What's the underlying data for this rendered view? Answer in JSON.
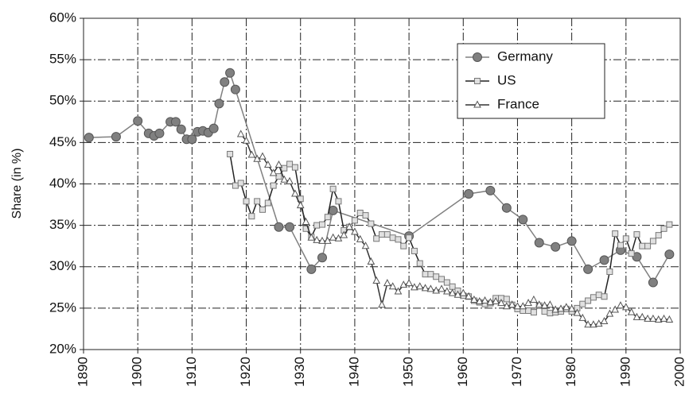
{
  "chart_data": {
    "type": "line",
    "y_label": "Share (in %)",
    "grid": true,
    "legend": "upper right",
    "xlim": [
      1890,
      2000
    ],
    "xticks": [
      1890,
      1900,
      1910,
      1920,
      1930,
      1940,
      1950,
      1960,
      1970,
      1980,
      1990,
      2000
    ],
    "ylim": [
      20,
      60
    ],
    "yticks": [
      {
        "value": 20,
        "label": "20%"
      },
      {
        "value": 25,
        "label": "25%"
      },
      {
        "value": 30,
        "label": "30%"
      },
      {
        "value": 35,
        "label": "35%"
      },
      {
        "value": 40,
        "label": "40%"
      },
      {
        "value": 45,
        "label": "45%"
      },
      {
        "value": 50,
        "label": "50%"
      },
      {
        "value": 55,
        "label": "55%"
      },
      {
        "value": 60,
        "label": "60%"
      }
    ],
    "series": [
      {
        "name": "Germany",
        "color": "#808080",
        "marker": "circle",
        "x": [
          1891,
          1896,
          1900,
          1902,
          1903,
          1904,
          1906,
          1907,
          1908,
          1909,
          1910,
          1911,
          1912,
          1913,
          1914,
          1915,
          1916,
          1917,
          1918,
          1926,
          1928,
          1932,
          1934,
          1936,
          1950,
          1961,
          1965,
          1968,
          1971,
          1974,
          1977,
          1980,
          1983,
          1986,
          1989,
          1992,
          1995,
          1998
        ],
        "values": [
          45.6,
          45.7,
          47.6,
          46.1,
          45.8,
          46.1,
          47.5,
          47.5,
          46.6,
          45.4,
          45.4,
          46.3,
          46.4,
          46.2,
          46.7,
          49.7,
          52.3,
          53.4,
          51.4,
          34.8,
          34.8,
          29.7,
          31.1,
          36.8,
          33.7,
          38.8,
          39.2,
          37.1,
          35.7,
          32.9,
          32.4,
          33.1,
          29.7,
          30.8,
          32.0,
          31.2,
          28.1,
          31.5
        ]
      },
      {
        "name": "US",
        "color": "#222222",
        "marker": "square",
        "x": [
          1917,
          1918,
          1919,
          1920,
          1921,
          1922,
          1923,
          1924,
          1925,
          1926,
          1927,
          1928,
          1929,
          1930,
          1931,
          1932,
          1933,
          1934,
          1935,
          1936,
          1937,
          1938,
          1939,
          1940,
          1941,
          1942,
          1943,
          1944,
          1945,
          1946,
          1947,
          1948,
          1949,
          1950,
          1951,
          1952,
          1953,
          1954,
          1955,
          1956,
          1957,
          1958,
          1959,
          1960,
          1961,
          1962,
          1963,
          1964,
          1965,
          1966,
          1967,
          1968,
          1969,
          1970,
          1971,
          1972,
          1973,
          1974,
          1975,
          1976,
          1977,
          1978,
          1979,
          1980,
          1981,
          1982,
          1983,
          1984,
          1985,
          1986,
          1987,
          1988,
          1989,
          1990,
          1991,
          1992,
          1993,
          1994,
          1995,
          1996,
          1997,
          1998
        ],
        "values": [
          43.6,
          39.8,
          40.1,
          37.9,
          36.1,
          37.9,
          36.9,
          37.7,
          39.8,
          40.9,
          41.9,
          42.4,
          42.0,
          38.2,
          34.6,
          33.6,
          35.0,
          35.1,
          36.0,
          39.4,
          37.9,
          34.4,
          34.8,
          35.6,
          36.5,
          36.2,
          35.2,
          33.4,
          33.9,
          33.9,
          33.5,
          33.3,
          32.5,
          33.5,
          31.9,
          30.4,
          29.1,
          29.1,
          28.8,
          28.5,
          28.1,
          27.6,
          27.1,
          26.5,
          26.4,
          25.9,
          25.7,
          25.5,
          25.6,
          26.2,
          26.2,
          26.1,
          25.4,
          24.9,
          24.7,
          24.7,
          24.5,
          25.3,
          24.6,
          24.4,
          24.5,
          24.6,
          24.9,
          24.6,
          25.0,
          25.5,
          25.9,
          26.3,
          26.6,
          26.4,
          29.4,
          34.0,
          32.6,
          33.4,
          31.6,
          33.9,
          32.5,
          32.5,
          33.1,
          33.8,
          34.6,
          35.1
        ]
      },
      {
        "name": "France",
        "color": "#333333",
        "marker": "triangle",
        "x": [
          1919,
          1920,
          1921,
          1922,
          1923,
          1924,
          1925,
          1926,
          1927,
          1928,
          1929,
          1930,
          1931,
          1932,
          1933,
          1934,
          1935,
          1936,
          1937,
          1938,
          1939,
          1940,
          1941,
          1942,
          1943,
          1944,
          1945,
          1946,
          1947,
          1948,
          1949,
          1950,
          1951,
          1952,
          1953,
          1954,
          1955,
          1956,
          1957,
          1958,
          1959,
          1960,
          1961,
          1962,
          1963,
          1964,
          1965,
          1966,
          1967,
          1968,
          1969,
          1970,
          1971,
          1972,
          1973,
          1974,
          1975,
          1976,
          1977,
          1978,
          1979,
          1980,
          1981,
          1982,
          1983,
          1984,
          1985,
          1986,
          1987,
          1988,
          1989,
          1990,
          1991,
          1992,
          1993,
          1994,
          1995,
          1996,
          1997,
          1998
        ],
        "values": [
          46.0,
          45.2,
          43.5,
          43.0,
          43.3,
          42.3,
          41.3,
          42.3,
          40.5,
          40.3,
          38.8,
          37.4,
          35.4,
          33.5,
          33.2,
          33.1,
          33.1,
          33.5,
          33.4,
          33.8,
          34.8,
          34.2,
          33.3,
          32.5,
          30.6,
          28.3,
          25.4,
          28.0,
          27.6,
          27.0,
          27.8,
          28.0,
          27.5,
          27.6,
          27.4,
          27.3,
          27.1,
          27.3,
          27.0,
          26.8,
          26.6,
          26.8,
          26.4,
          26.0,
          25.8,
          25.9,
          25.7,
          25.8,
          25.6,
          25.2,
          25.4,
          25.2,
          25.2,
          25.6,
          26.0,
          25.4,
          25.3,
          25.4,
          24.8,
          24.9,
          25.1,
          24.9,
          24.4,
          23.8,
          23.0,
          23.0,
          23.1,
          23.4,
          24.3,
          24.8,
          25.3,
          25.1,
          24.5,
          23.9,
          23.9,
          23.7,
          23.7,
          23.6,
          23.7,
          23.6
        ]
      }
    ]
  }
}
